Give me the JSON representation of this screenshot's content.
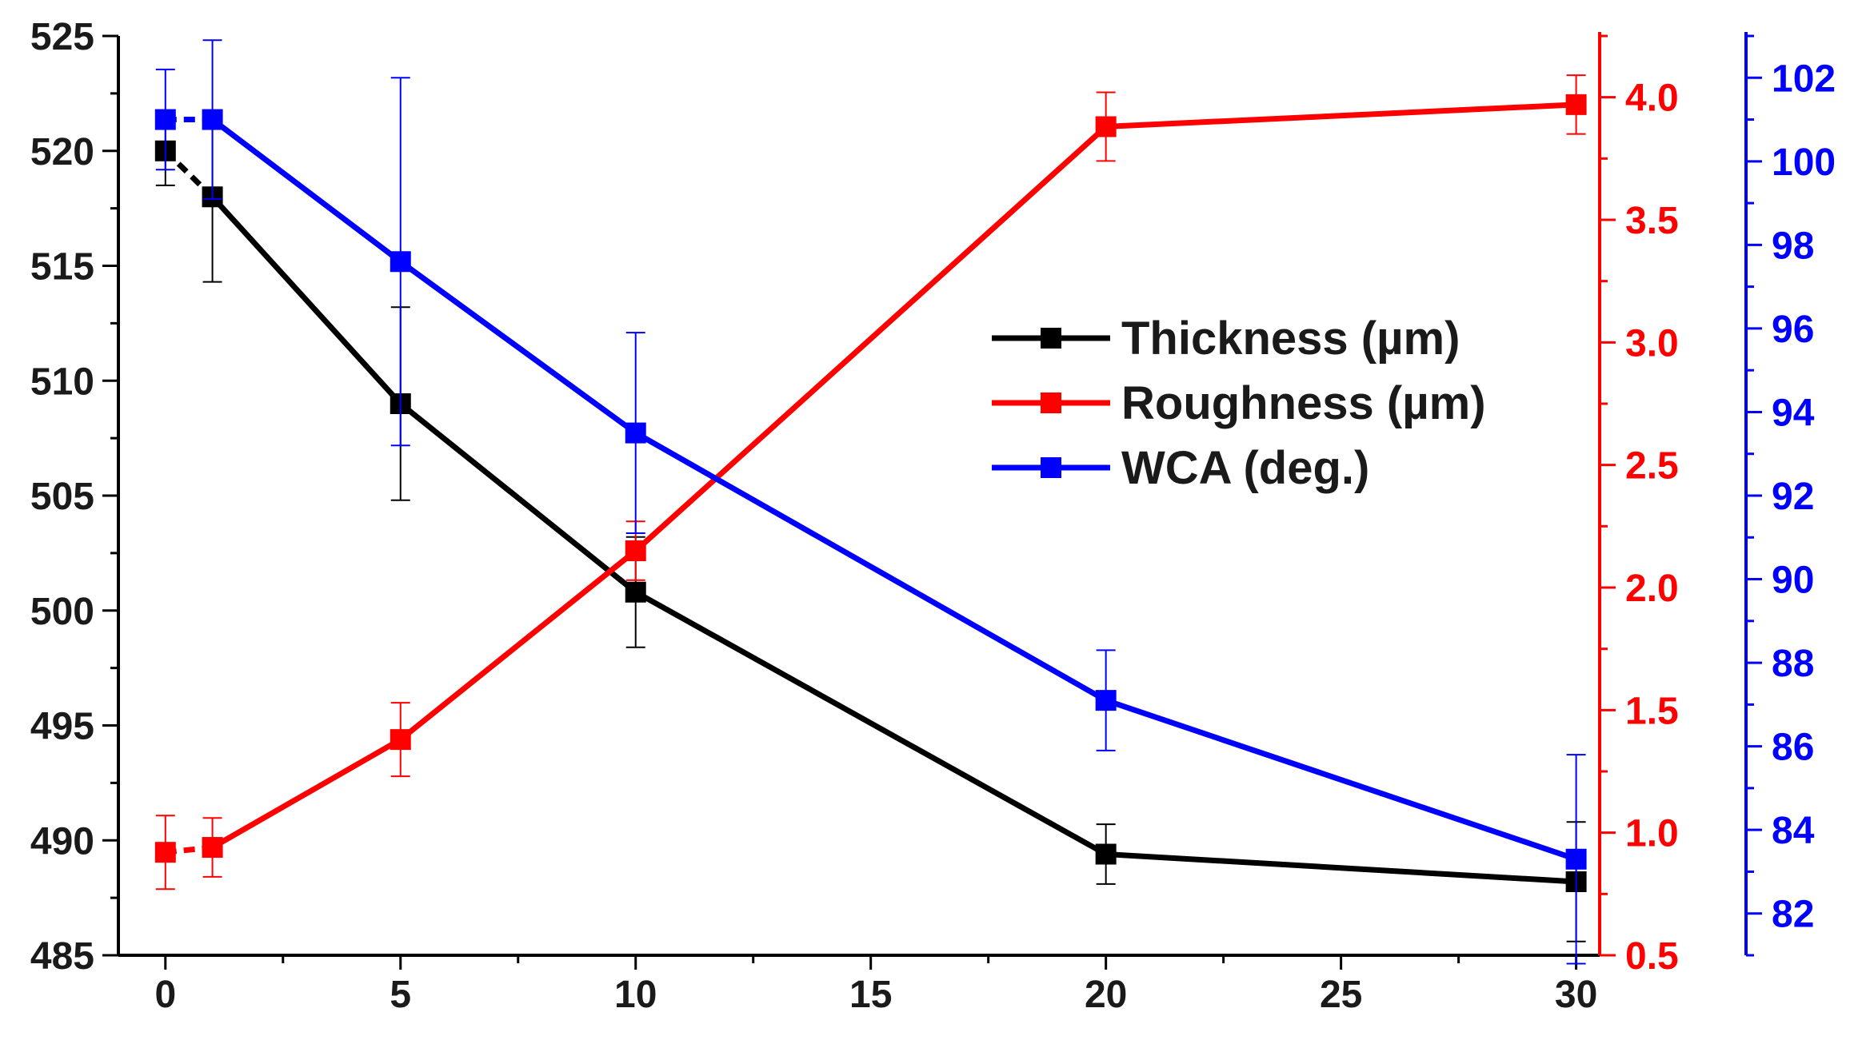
{
  "chart_data": {
    "type": "line",
    "title": "",
    "xlabel": "",
    "x": [
      0,
      1,
      5,
      10,
      20,
      30
    ],
    "xlim": [
      -1,
      30.5
    ],
    "xticks": [
      0,
      5,
      10,
      15,
      20,
      25,
      30
    ],
    "axes": {
      "left": {
        "color": "#000000",
        "ylim": [
          485,
          525
        ],
        "ticks": [
          485,
          490,
          495,
          500,
          505,
          510,
          515,
          520,
          525
        ],
        "tick_labels": [
          "485",
          "490",
          "495",
          "500",
          "505",
          "510",
          "515",
          "520",
          "525"
        ]
      },
      "right1": {
        "color": "#ff0000",
        "ylim": [
          0.5,
          4.25
        ],
        "ticks": [
          0.5,
          1.0,
          1.5,
          2.0,
          2.5,
          3.0,
          3.5,
          4.0
        ],
        "tick_labels": [
          "0.5",
          "1.0",
          "1.5",
          "2.0",
          "2.5",
          "3.0",
          "3.5",
          "4.0"
        ]
      },
      "right2": {
        "color": "#0000ff",
        "ylim": [
          81,
          103
        ],
        "ticks": [
          82,
          84,
          86,
          88,
          90,
          92,
          94,
          96,
          98,
          100,
          102
        ],
        "tick_labels": [
          "82",
          "84",
          "86",
          "88",
          "90",
          "92",
          "94",
          "96",
          "98",
          "100",
          "102"
        ]
      }
    },
    "series": [
      {
        "name": "Thickness (µm)",
        "axis": "left",
        "color": "#000000",
        "values": [
          520,
          518,
          509,
          500.8,
          489.4,
          488.2
        ],
        "errors": [
          1.5,
          3.7,
          4.2,
          2.4,
          1.3,
          2.6
        ]
      },
      {
        "name": "Roughness (µm)",
        "axis": "right1",
        "color": "#ff0000",
        "values": [
          0.92,
          0.94,
          1.38,
          2.15,
          3.88,
          3.97
        ],
        "errors": [
          0.15,
          0.12,
          0.15,
          0.12,
          0.14,
          0.12
        ]
      },
      {
        "name": "WCA (deg.)",
        "axis": "right2",
        "color": "#0000ff",
        "values": [
          101,
          101,
          97.6,
          93.5,
          87.1,
          83.3
        ],
        "errors": [
          1.2,
          1.9,
          4.4,
          2.4,
          1.2,
          2.5
        ]
      }
    ],
    "legend": {
      "position": "center-right"
    }
  }
}
